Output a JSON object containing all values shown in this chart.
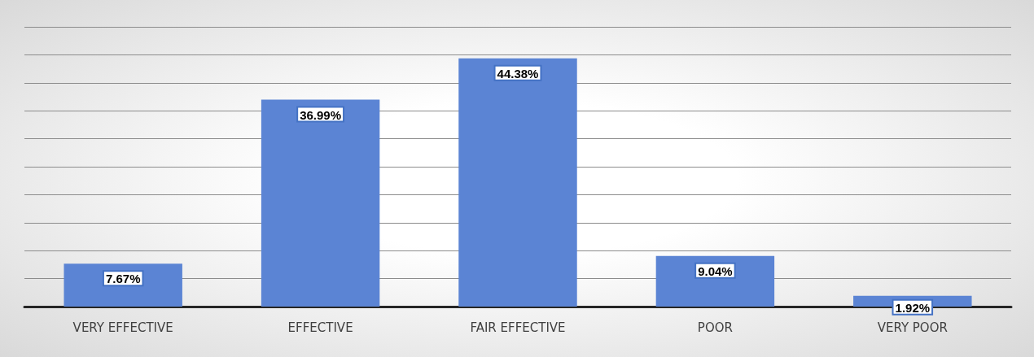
{
  "chart_data": {
    "type": "bar",
    "categories": [
      "VERY EFFECTIVE",
      "EFFECTIVE",
      "FAIR EFFECTIVE",
      "POOR",
      "VERY POOR"
    ],
    "values": [
      7.67,
      36.99,
      44.38,
      9.04,
      1.92
    ],
    "value_labels": [
      "7.67%",
      "36.99%",
      "44.38%",
      "9.04%",
      "1.92%"
    ],
    "color": "#5b84d4",
    "ylim": [
      0,
      50
    ],
    "yticks": [
      {
        "value": 0,
        "label": null
      },
      {
        "value": 5,
        "label": null
      },
      {
        "value": 10,
        "label": null
      },
      {
        "value": 15,
        "label": null
      },
      {
        "value": 20,
        "label": null
      },
      {
        "value": 25,
        "label": null
      },
      {
        "value": 30,
        "label": null
      },
      {
        "value": 35,
        "label": null
      },
      {
        "value": 40,
        "label": null
      },
      {
        "value": 45,
        "label": null
      },
      {
        "value": 50,
        "label": null
      }
    ],
    "grid": "y",
    "tick_labels": "x"
  }
}
